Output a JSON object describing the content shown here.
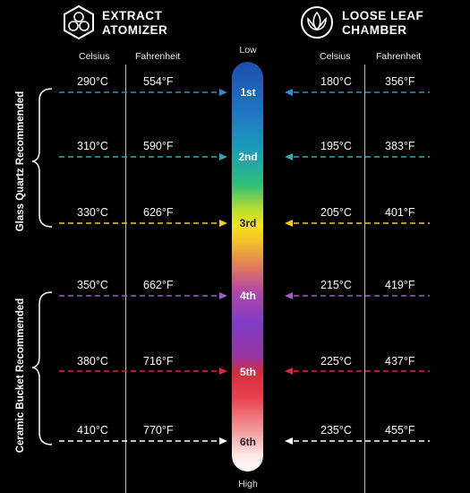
{
  "left_header": {
    "title_line1": "EXTRACT",
    "title_line2": "ATOMIZER"
  },
  "right_header": {
    "title_line1": "LOOSE LEAF",
    "title_line2": "CHAMBER"
  },
  "left_columns": {
    "celsius": "Celsius",
    "fahrenheit": "Fahrenheit"
  },
  "right_columns": {
    "celsius": "Celsius",
    "fahrenheit": "Fahrenheit"
  },
  "scale": {
    "low": "Low",
    "high": "High"
  },
  "brackets": {
    "glass": "Glass Quartz Recommended",
    "ceramic": "Ceramic Bucket Recommended"
  },
  "levels": [
    {
      "label": "1st",
      "left_c": "290°C",
      "left_f": "554°F",
      "right_c": "180°C",
      "right_f": "356°F",
      "arrow_color": "#2a8fd8",
      "label_color": "#ffffff"
    },
    {
      "label": "2nd",
      "left_c": "310°C",
      "left_f": "590°F",
      "right_c": "195°C",
      "right_f": "383°F",
      "arrow_color": "#1fb1b8",
      "label_color": "#ffffff"
    },
    {
      "label": "3rd",
      "left_c": "330°C",
      "left_f": "626°F",
      "right_c": "205°C",
      "right_f": "401°F",
      "arrow_color": "#f1d018",
      "label_color": "#222222"
    },
    {
      "label": "4th",
      "left_c": "350°C",
      "left_f": "662°F",
      "right_c": "215°C",
      "right_f": "419°F",
      "arrow_color": "#a35ad0",
      "label_color": "#ffffff"
    },
    {
      "label": "5th",
      "left_c": "380°C",
      "left_f": "716°F",
      "right_c": "225°C",
      "right_f": "437°F",
      "arrow_color": "#e0283a",
      "label_color": "#ffffff"
    },
    {
      "label": "6th",
      "left_c": "410°C",
      "left_f": "770°F",
      "right_c": "235°C",
      "right_f": "455°F",
      "arrow_color": "#ffffff",
      "label_color": "#222222"
    }
  ],
  "colors": {
    "background": "#000000",
    "gradient": [
      "#1b5fb8",
      "#1f8fc0",
      "#22b7a0",
      "#3ec060",
      "#d7e22a",
      "#f7e11a",
      "#f2a23a",
      "#c63a96",
      "#8a3ec6",
      "#7a3ac4",
      "#e02a3a",
      "#f06a6a",
      "#f8d8d8",
      "#ffffff"
    ]
  }
}
